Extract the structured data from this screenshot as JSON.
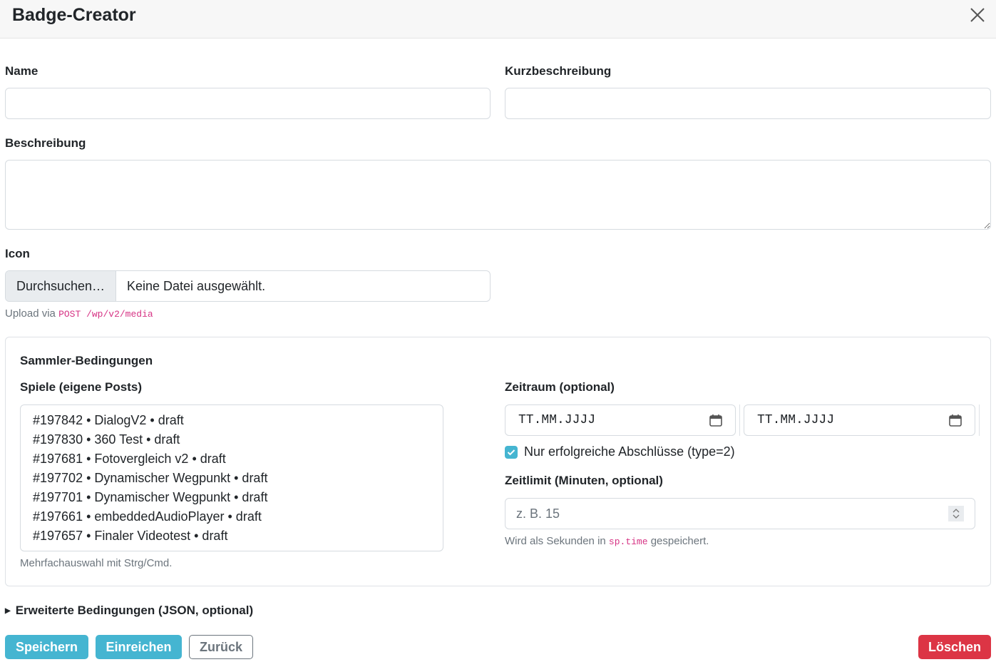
{
  "header": {
    "title": "Badge-Creator"
  },
  "fields": {
    "name_label": "Name",
    "name_value": "",
    "short_label": "Kurzbeschreibung",
    "short_value": "",
    "desc_label": "Beschreibung",
    "desc_value": "",
    "icon_label": "Icon",
    "browse_label": "Durchsuchen…",
    "no_file": "Keine Datei ausgewählt.",
    "upload_prefix": "Upload via",
    "upload_code": "POST /wp/v2/media"
  },
  "conditions": {
    "title": "Sammler-Bedingungen",
    "games_label": "Spiele (eigene Posts)",
    "games": [
      "#197842 • DialogV2 • draft",
      "#197830 • 360 Test • draft",
      "#197681 • Fotovergleich v2 • draft",
      "#197702 • Dynamischer Wegpunkt • draft",
      "#197701 • Dynamischer Wegpunkt • draft",
      "#197661 • embeddedAudioPlayer • draft",
      "#197657 • Finaler Videotest • draft"
    ],
    "games_hint": "Mehrfachauswahl mit Strg/Cmd.",
    "period_label": "Zeitraum (optional)",
    "date_from_placeholder": "TT.MM.JJJJ",
    "date_to_placeholder": "TT.MM.JJJJ",
    "success_only_label": "Nur erfolgreiche Abschlüsse (type=2)",
    "success_only_checked": true,
    "timelimit_label": "Zeitlimit (Minuten, optional)",
    "timelimit_placeholder": "z. B. 15",
    "timelimit_hint_prefix": "Wird als Sekunden in",
    "timelimit_hint_code": "sp.time",
    "timelimit_hint_suffix": "gespeichert."
  },
  "advanced": {
    "label": "Erweiterte Bedingungen (JSON, optional)"
  },
  "actions": {
    "save": "Speichern",
    "submit": "Einreichen",
    "back": "Zurück",
    "delete": "Löschen"
  },
  "colors": {
    "accent": "#45b5d1",
    "danger": "#dc3545"
  }
}
